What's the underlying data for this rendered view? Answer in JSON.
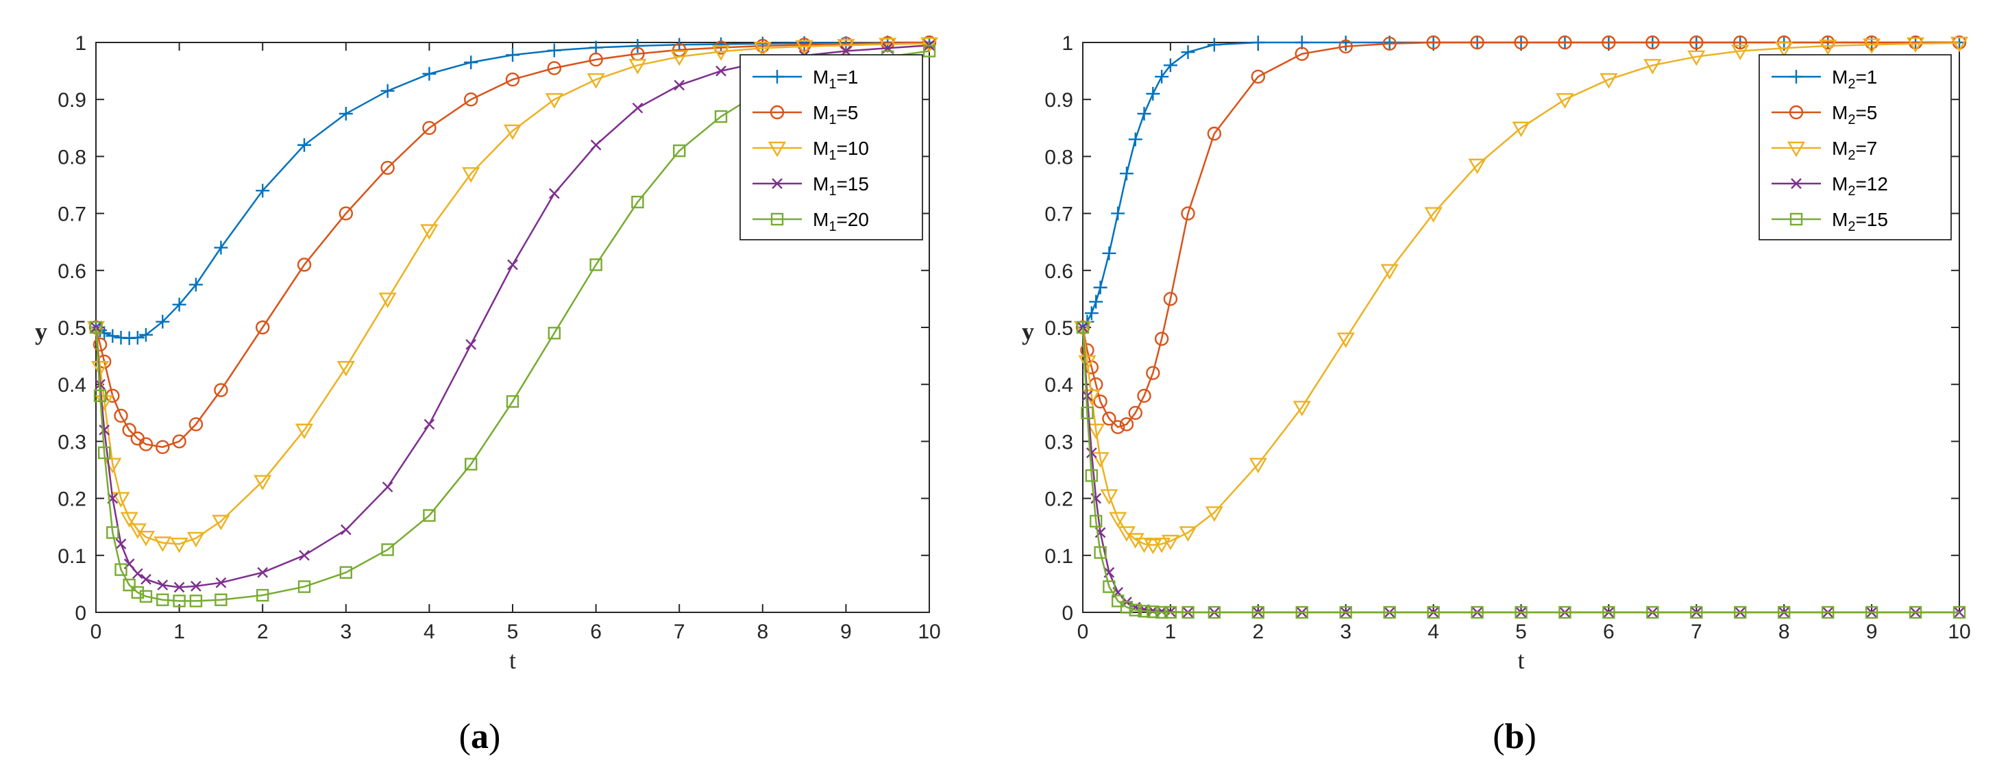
{
  "colors": {
    "series": [
      "#0072BD",
      "#D95319",
      "#EDB120",
      "#7E2F8E",
      "#77AC30"
    ],
    "axis": "#262626"
  },
  "chart_data": [
    {
      "type": "line",
      "panel_label": "a",
      "xlabel": "t",
      "ylabel": "y",
      "xlim": [
        0,
        10
      ],
      "ylim": [
        0,
        1
      ],
      "xticks": [
        "0",
        "1",
        "2",
        "3",
        "4",
        "5",
        "6",
        "7",
        "8",
        "9",
        "10"
      ],
      "yticks": [
        "0",
        "0.1",
        "0.2",
        "0.3",
        "0.4",
        "0.5",
        "0.6",
        "0.7",
        "0.8",
        "0.9",
        "1"
      ],
      "legend_position": "top-right",
      "x": [
        0,
        0.05,
        0.1,
        0.2,
        0.3,
        0.4,
        0.5,
        0.6,
        0.8,
        1.0,
        1.2,
        1.5,
        2.0,
        2.5,
        3.0,
        3.5,
        4.0,
        4.5,
        5.0,
        5.5,
        6.0,
        6.5,
        7.0,
        7.5,
        8.0,
        8.5,
        9.0,
        9.5,
        10.0
      ],
      "series": [
        {
          "name": "M_1=1",
          "marker": "plus",
          "values": [
            0.5,
            0.495,
            0.49,
            0.485,
            0.482,
            0.481,
            0.482,
            0.487,
            0.51,
            0.54,
            0.575,
            0.64,
            0.74,
            0.82,
            0.875,
            0.915,
            0.945,
            0.965,
            0.978,
            0.986,
            0.991,
            0.994,
            0.996,
            0.997,
            0.998,
            0.999,
            0.999,
            1.0,
            1.0
          ]
        },
        {
          "name": "M_1=5",
          "marker": "circle",
          "values": [
            0.5,
            0.47,
            0.44,
            0.38,
            0.345,
            0.32,
            0.305,
            0.295,
            0.29,
            0.3,
            0.33,
            0.39,
            0.5,
            0.61,
            0.7,
            0.78,
            0.85,
            0.9,
            0.935,
            0.955,
            0.97,
            0.98,
            0.987,
            0.991,
            0.994,
            0.996,
            0.998,
            0.999,
            1.0
          ]
        },
        {
          "name": "M_1=10",
          "marker": "triangle-down",
          "values": [
            0.5,
            0.43,
            0.37,
            0.26,
            0.2,
            0.165,
            0.145,
            0.132,
            0.122,
            0.12,
            0.13,
            0.16,
            0.23,
            0.32,
            0.43,
            0.55,
            0.67,
            0.77,
            0.845,
            0.9,
            0.935,
            0.96,
            0.975,
            0.984,
            0.99,
            0.993,
            0.995,
            0.997,
            0.998
          ]
        },
        {
          "name": "M_1=15",
          "marker": "x",
          "values": [
            0.5,
            0.4,
            0.32,
            0.2,
            0.12,
            0.085,
            0.068,
            0.058,
            0.048,
            0.044,
            0.046,
            0.052,
            0.07,
            0.1,
            0.145,
            0.22,
            0.33,
            0.47,
            0.61,
            0.735,
            0.82,
            0.885,
            0.925,
            0.95,
            0.966,
            0.977,
            0.985,
            0.99,
            0.995
          ]
        },
        {
          "name": "M_1=20",
          "marker": "square",
          "values": [
            0.5,
            0.38,
            0.28,
            0.14,
            0.075,
            0.048,
            0.035,
            0.028,
            0.022,
            0.02,
            0.02,
            0.022,
            0.03,
            0.045,
            0.07,
            0.11,
            0.17,
            0.26,
            0.37,
            0.49,
            0.61,
            0.72,
            0.81,
            0.87,
            0.915,
            0.945,
            0.963,
            0.975,
            0.985
          ]
        }
      ]
    },
    {
      "type": "line",
      "panel_label": "b",
      "xlabel": "t",
      "ylabel": "y",
      "xlim": [
        0,
        10
      ],
      "ylim": [
        0,
        1
      ],
      "xticks": [
        "0",
        "1",
        "2",
        "3",
        "4",
        "5",
        "6",
        "7",
        "8",
        "9",
        "10"
      ],
      "yticks": [
        "0",
        "0.1",
        "0.2",
        "0.3",
        "0.4",
        "0.5",
        "0.6",
        "0.7",
        "0.8",
        "0.9",
        "1"
      ],
      "legend_position": "top-right",
      "x": [
        0,
        0.05,
        0.1,
        0.15,
        0.2,
        0.3,
        0.4,
        0.5,
        0.6,
        0.7,
        0.8,
        0.9,
        1.0,
        1.2,
        1.5,
        2.0,
        2.5,
        3.0,
        3.5,
        4.0,
        4.5,
        5.0,
        5.5,
        6.0,
        6.5,
        7.0,
        7.5,
        8.0,
        8.5,
        9.0,
        9.5,
        10.0
      ],
      "series": [
        {
          "name": "M_2=1",
          "marker": "plus",
          "values": [
            0.5,
            0.51,
            0.525,
            0.545,
            0.57,
            0.63,
            0.7,
            0.77,
            0.83,
            0.875,
            0.91,
            0.94,
            0.96,
            0.983,
            0.996,
            1.0,
            1.0,
            1.0,
            1.0,
            1.0,
            1.0,
            1.0,
            1.0,
            1.0,
            1.0,
            1.0,
            1.0,
            1.0,
            1.0,
            1.0,
            1.0,
            1.0
          ]
        },
        {
          "name": "M_2=5",
          "marker": "circle",
          "values": [
            0.5,
            0.46,
            0.43,
            0.4,
            0.37,
            0.34,
            0.325,
            0.33,
            0.35,
            0.38,
            0.42,
            0.48,
            0.55,
            0.7,
            0.84,
            0.94,
            0.98,
            0.993,
            0.998,
            1.0,
            1.0,
            1.0,
            1.0,
            1.0,
            1.0,
            1.0,
            1.0,
            1.0,
            1.0,
            1.0,
            1.0,
            1.0
          ]
        },
        {
          "name": "M_2=7",
          "marker": "triangle-down",
          "values": [
            0.5,
            0.44,
            0.38,
            0.32,
            0.27,
            0.205,
            0.165,
            0.14,
            0.128,
            0.12,
            0.118,
            0.12,
            0.125,
            0.14,
            0.175,
            0.26,
            0.36,
            0.48,
            0.6,
            0.7,
            0.785,
            0.85,
            0.9,
            0.935,
            0.96,
            0.975,
            0.985,
            0.99,
            0.994,
            0.996,
            0.998,
            0.999
          ]
        },
        {
          "name": "M_2=12",
          "marker": "x",
          "values": [
            0.5,
            0.38,
            0.28,
            0.2,
            0.14,
            0.07,
            0.035,
            0.018,
            0.009,
            0.005,
            0.003,
            0.002,
            0.001,
            0.0,
            0.0,
            0.0,
            0.0,
            0.0,
            0.0,
            0.0,
            0.0,
            0.0,
            0.0,
            0.0,
            0.0,
            0.0,
            0.0,
            0.0,
            0.0,
            0.0,
            0.0,
            0.0
          ]
        },
        {
          "name": "M_2=15",
          "marker": "square",
          "values": [
            0.5,
            0.35,
            0.24,
            0.16,
            0.105,
            0.045,
            0.02,
            0.009,
            0.004,
            0.002,
            0.001,
            0.0,
            0.0,
            0.0,
            0.0,
            0.0,
            0.0,
            0.0,
            0.0,
            0.0,
            0.0,
            0.0,
            0.0,
            0.0,
            0.0,
            0.0,
            0.0,
            0.0,
            0.0,
            0.0,
            0.0,
            0.0
          ]
        }
      ]
    }
  ]
}
